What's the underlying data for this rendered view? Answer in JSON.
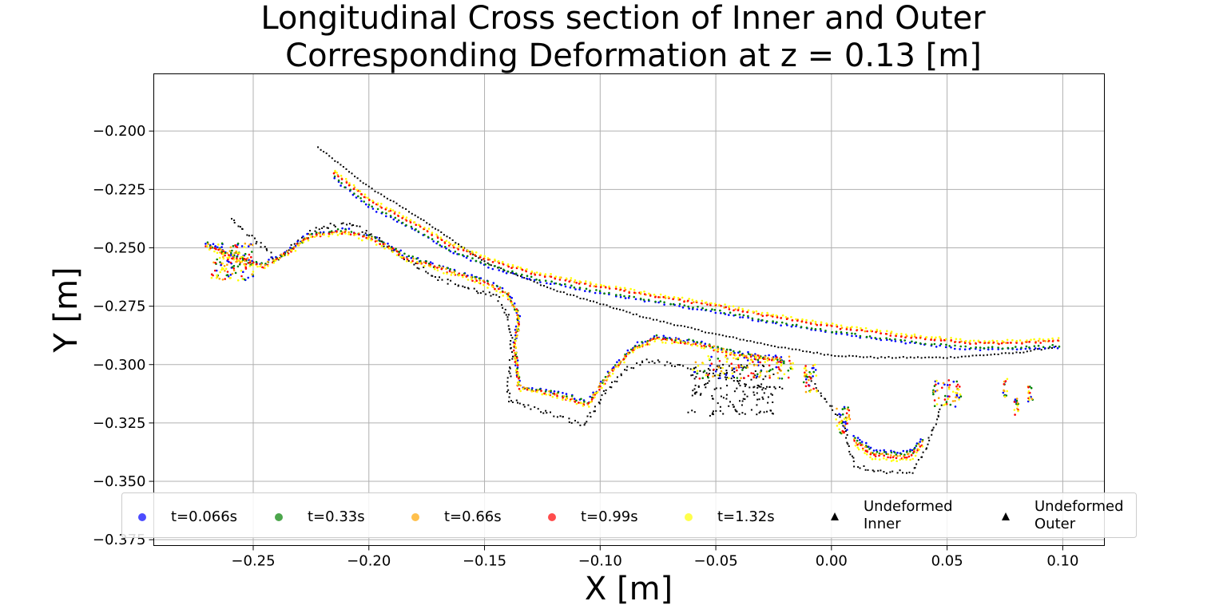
{
  "chart_data": {
    "type": "scatter",
    "title_lines": [
      "Longitudinal Cross section of Inner and Outer",
      "Corresponding Deformation at z = 0.13 [m]"
    ],
    "xlabel": "X [m]",
    "ylabel": "Y [m]",
    "xlim": [
      -0.293,
      0.118
    ],
    "ylim": [
      -0.3775,
      -0.1755
    ],
    "x_ticks": [
      -0.25,
      -0.2,
      -0.15,
      -0.1,
      -0.05,
      0.0,
      0.05,
      0.1
    ],
    "x_tick_labels": [
      "−0.25",
      "−0.20",
      "−0.15",
      "−0.10",
      "−0.05",
      "0.00",
      "0.05",
      "0.10"
    ],
    "y_ticks": [
      -0.2,
      -0.225,
      -0.25,
      -0.275,
      -0.3,
      -0.325,
      -0.35,
      -0.375
    ],
    "y_tick_labels": [
      "−0.200",
      "−0.225",
      "−0.250",
      "−0.275",
      "−0.300",
      "−0.325",
      "−0.350",
      "−0.375"
    ],
    "grid": true,
    "legend_position": "bottom, horizontal",
    "series": [
      {
        "name": "t=0.066s",
        "color": "#0000ff",
        "marker": "circle",
        "outer_offset": -0.0025,
        "inner_offset": 0.0012
      },
      {
        "name": "t=0.33s",
        "color": "#008000",
        "marker": "circle",
        "outer_offset": -0.0018,
        "inner_offset": 0.0008
      },
      {
        "name": "t=0.66s",
        "color": "#ffa500",
        "marker": "circle",
        "outer_offset": 0.0005,
        "inner_offset": 0.0004
      },
      {
        "name": "t=0.99s",
        "color": "#ff0000",
        "marker": "circle",
        "outer_offset": 0.0002,
        "inner_offset": 0.0
      },
      {
        "name": "t=1.32s",
        "color": "#ffff00",
        "marker": "circle",
        "outer_offset": 0.0012,
        "inner_offset": -0.0006
      }
    ],
    "undeformed": [
      {
        "name": "Undeformed Inner",
        "label_lines": [
          "Undeformed",
          "Inner"
        ],
        "color": "#000000",
        "marker": "triangle"
      },
      {
        "name": "Undeformed Outer",
        "label_lines": [
          "Undeformed",
          "Outer"
        ],
        "color": "#000000",
        "marker": "triangle"
      }
    ],
    "profiles": {
      "deformed_outer": [
        [
          -0.215,
          -0.218
        ],
        [
          -0.2,
          -0.23
        ],
        [
          -0.18,
          -0.24
        ],
        [
          -0.165,
          -0.249
        ],
        [
          -0.15,
          -0.255
        ],
        [
          -0.13,
          -0.261
        ],
        [
          -0.1,
          -0.267
        ],
        [
          -0.07,
          -0.272
        ],
        [
          -0.05,
          -0.275
        ],
        [
          -0.03,
          -0.279
        ],
        [
          0.0,
          -0.284
        ],
        [
          0.03,
          -0.288
        ],
        [
          0.06,
          -0.291
        ],
        [
          0.08,
          -0.291
        ],
        [
          0.1,
          -0.29
        ]
      ],
      "deformed_inner": [
        [
          -0.27,
          -0.249
        ],
        [
          -0.255,
          -0.256
        ],
        [
          -0.245,
          -0.258
        ],
        [
          -0.235,
          -0.252
        ],
        [
          -0.225,
          -0.245
        ],
        [
          -0.21,
          -0.243
        ],
        [
          -0.195,
          -0.248
        ],
        [
          -0.185,
          -0.254
        ],
        [
          -0.17,
          -0.259
        ],
        [
          -0.15,
          -0.265
        ],
        [
          -0.14,
          -0.27
        ],
        [
          -0.135,
          -0.28
        ],
        [
          -0.137,
          -0.292
        ],
        [
          -0.135,
          -0.31
        ],
        [
          -0.12,
          -0.313
        ],
        [
          -0.105,
          -0.317
        ],
        [
          -0.095,
          -0.303
        ],
        [
          -0.085,
          -0.293
        ],
        [
          -0.075,
          -0.289
        ],
        [
          -0.06,
          -0.291
        ],
        [
          -0.04,
          -0.296
        ],
        [
          -0.02,
          -0.299
        ]
      ],
      "deformed_lower": [
        [
          0.01,
          -0.333
        ],
        [
          0.018,
          -0.339
        ],
        [
          0.03,
          -0.34
        ],
        [
          0.035,
          -0.339
        ],
        [
          0.04,
          -0.333
        ]
      ],
      "undeformed_outer": [
        [
          -0.222,
          -0.207
        ],
        [
          -0.2,
          -0.224
        ],
        [
          -0.18,
          -0.236
        ],
        [
          -0.165,
          -0.246
        ],
        [
          -0.15,
          -0.256
        ],
        [
          -0.12,
          -0.268
        ],
        [
          -0.1,
          -0.274
        ],
        [
          -0.08,
          -0.28
        ],
        [
          -0.05,
          -0.287
        ],
        [
          -0.02,
          -0.293
        ],
        [
          0.0,
          -0.296
        ],
        [
          0.02,
          -0.297
        ],
        [
          0.05,
          -0.297
        ],
        [
          0.08,
          -0.295
        ],
        [
          0.1,
          -0.292
        ]
      ],
      "undeformed_inner": [
        [
          -0.26,
          -0.238
        ],
        [
          -0.25,
          -0.246
        ],
        [
          -0.24,
          -0.255
        ],
        [
          -0.235,
          -0.251
        ],
        [
          -0.225,
          -0.243
        ],
        [
          -0.215,
          -0.24
        ],
        [
          -0.205,
          -0.241
        ],
        [
          -0.195,
          -0.247
        ],
        [
          -0.18,
          -0.257
        ],
        [
          -0.17,
          -0.263
        ],
        [
          -0.155,
          -0.268
        ],
        [
          -0.145,
          -0.271
        ],
        [
          -0.14,
          -0.278
        ],
        [
          -0.138,
          -0.294
        ],
        [
          -0.14,
          -0.315
        ],
        [
          -0.125,
          -0.32
        ],
        [
          -0.107,
          -0.326
        ],
        [
          -0.1,
          -0.315
        ],
        [
          -0.09,
          -0.303
        ],
        [
          -0.08,
          -0.298
        ],
        [
          -0.065,
          -0.301
        ],
        [
          -0.05,
          -0.305
        ],
        [
          -0.035,
          -0.309
        ],
        [
          -0.02,
          -0.31
        ]
      ],
      "undeformed_lower": [
        [
          -0.01,
          -0.305
        ],
        [
          0.005,
          -0.325
        ],
        [
          0.01,
          -0.343
        ],
        [
          0.02,
          -0.346
        ],
        [
          0.035,
          -0.346
        ],
        [
          0.04,
          -0.338
        ],
        [
          0.045,
          -0.325
        ],
        [
          0.048,
          -0.316
        ]
      ],
      "black_cluster": [
        [
          -0.06,
          -0.305
        ],
        [
          -0.055,
          -0.312
        ],
        [
          -0.045,
          -0.318
        ],
        [
          -0.04,
          -0.309
        ],
        [
          -0.05,
          -0.3
        ],
        [
          -0.06,
          -0.322
        ]
      ],
      "colored_cluster": [
        [
          -0.06,
          -0.299
        ],
        [
          -0.05,
          -0.302
        ],
        [
          -0.04,
          -0.297
        ],
        [
          -0.03,
          -0.298
        ],
        [
          -0.02,
          -0.3
        ]
      ],
      "right_bits": [
        [
          0.055,
          -0.311
        ],
        [
          0.075,
          -0.31
        ],
        [
          0.08,
          -0.318
        ],
        [
          0.086,
          -0.313
        ]
      ]
    }
  }
}
